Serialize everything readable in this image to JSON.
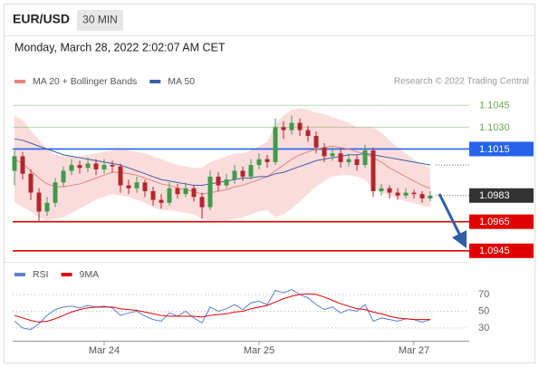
{
  "header": {
    "symbol": "EUR/USD",
    "timeframe": "30 MIN",
    "timestamp": "Monday, March 28, 2022 2:02:07 AM CET"
  },
  "chart_data": [
    {
      "type": "candlestick",
      "source": "Research © 2022 Trading Central",
      "categories": [
        null,
        null,
        null,
        null,
        null,
        null,
        null,
        null,
        null,
        null,
        null,
        "Mar 24",
        null,
        null,
        null,
        null,
        null,
        null,
        null,
        null,
        null,
        null,
        null,
        null,
        null,
        null,
        null,
        null,
        null,
        null,
        "Mar 25",
        null,
        null,
        null,
        null,
        null,
        null,
        null,
        null,
        null,
        null,
        null,
        null,
        null,
        null,
        null,
        null,
        null,
        null,
        "Mar 27",
        null,
        null
      ],
      "ylim": [
        1.0938,
        1.1062
      ],
      "up_color": "#3f9a4c",
      "down_color": "#b3262a",
      "ohlc": [
        [
          1.1,
          1.1014,
          1.099,
          1.101
        ],
        [
          1.101,
          1.1013,
          1.0994,
          1.0998
        ],
        [
          1.0998,
          1.1001,
          1.098,
          1.0985
        ],
        [
          1.0985,
          1.0988,
          1.0965,
          1.0972
        ],
        [
          1.0972,
          1.0982,
          1.0969,
          1.0978
        ],
        [
          1.0978,
          1.0995,
          1.0975,
          1.0992
        ],
        [
          1.0992,
          1.1003,
          1.0989,
          1.1
        ],
        [
          1.1,
          1.1008,
          1.0997,
          1.1004
        ],
        [
          1.1004,
          1.1007,
          1.0998,
          1.1002
        ],
        [
          1.1002,
          1.1009,
          1.0999,
          1.1005
        ],
        [
          1.1005,
          1.1008,
          1.0997,
          1.1001
        ],
        [
          1.1001,
          1.1008,
          1.0998,
          1.1004
        ],
        [
          1.1004,
          1.1007,
          1.0999,
          1.1003
        ],
        [
          1.1003,
          1.1005,
          1.0985,
          1.099
        ],
        [
          1.099,
          1.0994,
          1.0984,
          1.0988
        ],
        [
          1.0988,
          1.0996,
          1.0985,
          1.0992
        ],
        [
          1.0992,
          1.0994,
          1.0982,
          1.0986
        ],
        [
          1.0986,
          1.0989,
          1.0976,
          1.098
        ],
        [
          1.098,
          1.0984,
          1.0974,
          1.0978
        ],
        [
          1.0978,
          1.0992,
          1.0976,
          1.0988
        ],
        [
          1.0988,
          1.0991,
          1.0981,
          1.0984
        ],
        [
          1.0984,
          1.0992,
          1.0982,
          1.0988
        ],
        [
          1.0988,
          1.099,
          1.0979,
          1.0982
        ],
        [
          1.0982,
          1.0985,
          1.0967,
          1.0975
        ],
        [
          1.0975,
          1.1,
          1.0973,
          1.0996
        ],
        [
          1.0996,
          1.0999,
          1.0986,
          1.099
        ],
        [
          1.099,
          1.0998,
          1.0988,
          1.0994
        ],
        [
          1.0994,
          1.1004,
          1.0991,
          1.1
        ],
        [
          1.1,
          1.1003,
          1.0993,
          1.0996
        ],
        [
          1.0996,
          1.1008,
          1.0994,
          1.1004
        ],
        [
          1.1004,
          1.1012,
          1.1001,
          1.1008
        ],
        [
          1.1008,
          1.1011,
          1.1002,
          1.1006
        ],
        [
          1.1006,
          1.1036,
          1.1004,
          1.103
        ],
        [
          1.103,
          1.1034,
          1.1022,
          1.1028
        ],
        [
          1.1028,
          1.1038,
          1.1025,
          1.1033
        ],
        [
          1.1033,
          1.1036,
          1.1024,
          1.1028
        ],
        [
          1.1028,
          1.1031,
          1.102,
          1.1024
        ],
        [
          1.1024,
          1.1027,
          1.1012,
          1.1016
        ],
        [
          1.1016,
          1.1019,
          1.1006,
          1.101
        ],
        [
          1.101,
          1.1016,
          1.1007,
          1.1012
        ],
        [
          1.1012,
          1.1015,
          1.1002,
          1.1006
        ],
        [
          1.1006,
          1.1012,
          1.1003,
          1.1008
        ],
        [
          1.1008,
          1.1011,
          1.1,
          1.1004
        ],
        [
          1.1004,
          1.1018,
          1.1002,
          1.1014
        ],
        [
          1.1014,
          1.1016,
          1.0982,
          1.0986
        ],
        [
          1.0986,
          1.0991,
          1.0983,
          1.0988
        ],
        [
          1.0988,
          1.099,
          1.0981,
          1.0985
        ],
        [
          1.0985,
          1.0988,
          1.098,
          1.0983
        ],
        [
          1.0983,
          1.0988,
          1.0981,
          1.0985
        ],
        [
          1.0985,
          1.0987,
          1.0981,
          1.0984
        ],
        [
          1.0984,
          1.0986,
          1.0978,
          1.0981
        ],
        [
          1.0981,
          1.0986,
          1.0979,
          1.0983
        ]
      ],
      "series": [
        {
          "name": "MA 20 + Bollinger Bands",
          "color": "#e8837c",
          "band_color": "#fbdcdc",
          "values": [
            1.1008,
            1.1005,
            1.1,
            1.0995,
            1.0991,
            1.0989,
            1.0989,
            1.099,
            1.0991,
            1.0993,
            1.0995,
            1.0997,
            1.0999,
            1.0999,
            1.0998,
            1.0997,
            1.0995,
            1.0993,
            1.0991,
            1.099,
            1.0988,
            1.0987,
            1.0986,
            1.0984,
            1.0985,
            1.0986,
            1.0987,
            1.0989,
            1.099,
            1.0992,
            1.0994,
            1.0996,
            1.1,
            1.1004,
            1.1008,
            1.1011,
            1.1013,
            1.1015,
            1.1016,
            1.1017,
            1.1016,
            1.1015,
            1.1013,
            1.1012,
            1.1009,
            1.1006,
            1.1002,
            1.0999,
            1.0996,
            1.0993,
            1.099,
            1.0988
          ],
          "upper": [
            1.1038,
            1.1035,
            1.1028,
            1.1021,
            1.1015,
            1.1011,
            1.101,
            1.101,
            1.101,
            1.1011,
            1.1012,
            1.1013,
            1.1014,
            1.1015,
            1.1014,
            1.1013,
            1.1012,
            1.101,
            1.1008,
            1.1006,
            1.1004,
            1.1003,
            1.1002,
            1.1002,
            1.1006,
            1.1008,
            1.101,
            1.1012,
            1.1012,
            1.1014,
            1.1017,
            1.102,
            1.1032,
            1.1038,
            1.1042,
            1.1043,
            1.1042,
            1.104,
            1.1039,
            1.1037,
            1.1035,
            1.1033,
            1.103,
            1.103,
            1.103,
            1.1026,
            1.1021,
            1.1016,
            1.1012,
            1.1008,
            1.1004,
            1.1002
          ],
          "lower": [
            1.0978,
            1.0975,
            1.0972,
            1.0968,
            1.0966,
            1.0967,
            1.0968,
            1.0971,
            1.0974,
            1.0977,
            1.098,
            1.0982,
            1.0984,
            1.0983,
            1.0982,
            1.098,
            1.0978,
            1.0975,
            1.0973,
            1.0973,
            1.0972,
            1.0971,
            1.097,
            1.0967,
            1.0966,
            1.0966,
            1.0966,
            1.0967,
            1.0968,
            1.097,
            1.0972,
            1.0973,
            1.0968,
            1.097,
            1.0974,
            1.0979,
            1.0984,
            1.0989,
            1.0993,
            1.0996,
            1.0997,
            1.0997,
            1.0996,
            1.0994,
            1.0988,
            1.0985,
            1.0983,
            1.0981,
            1.0979,
            1.0978,
            1.0976,
            1.0975
          ]
        },
        {
          "name": "MA 50",
          "color": "#3b5fa8",
          "values": [
            1.1022,
            1.1021,
            1.1019,
            1.1017,
            1.1015,
            1.1013,
            1.1011,
            1.101,
            1.1009,
            1.1008,
            1.1007,
            1.1006,
            1.1005,
            1.1004,
            1.1002,
            1.1,
            1.0998,
            1.0996,
            1.0994,
            1.0993,
            1.0992,
            1.0991,
            1.099,
            1.099,
            1.0991,
            1.0992,
            1.0993,
            1.0994,
            1.0995,
            1.0995,
            1.0996,
            1.0996,
            1.0998,
            1.0999,
            1.1001,
            1.1003,
            1.1005,
            1.1007,
            1.1008,
            1.1009,
            1.101,
            1.1011,
            1.1011,
            1.1012,
            1.1011,
            1.101,
            1.1009,
            1.1008,
            1.1007,
            1.1006,
            1.1005,
            1.1004
          ]
        }
      ],
      "levels": [
        {
          "value": 1.1045,
          "label": "1.1045",
          "color": "#6aa84f",
          "box": false,
          "line": "solid"
        },
        {
          "value": 1.103,
          "label": "1.1030",
          "color": "#6aa84f",
          "box": false,
          "line": "solid"
        },
        {
          "value": 1.1015,
          "label": "1.1015",
          "color": "#2563eb",
          "box": true,
          "line": "solid"
        },
        {
          "value": 1.0983,
          "label": "1.0983",
          "color": "#333333",
          "box": true,
          "line": "dotted"
        },
        {
          "value": 1.0965,
          "label": "1.0965",
          "color": "#e00000",
          "box": true,
          "line": "solid"
        },
        {
          "value": 1.0945,
          "label": "1.0945",
          "color": "#e00000",
          "box": true,
          "line": "solid"
        }
      ]
    },
    {
      "type": "line",
      "ylim": [
        19,
        82
      ],
      "yticks": [
        30,
        50,
        70
      ],
      "grid": true,
      "series": [
        {
          "name": "RSI",
          "color": "#5b7fd6",
          "values": [
            38,
            30,
            28,
            35,
            45,
            52,
            55,
            56,
            54,
            57,
            55,
            56,
            54,
            45,
            48,
            50,
            44,
            40,
            38,
            48,
            44,
            50,
            42,
            36,
            55,
            50,
            53,
            58,
            52,
            60,
            62,
            58,
            75,
            72,
            76,
            70,
            66,
            58,
            52,
            55,
            48,
            52,
            50,
            58,
            38,
            42,
            40,
            38,
            41,
            40,
            37,
            40
          ]
        },
        {
          "name": "9MA",
          "color": "#e00000",
          "values": [
            45,
            42,
            39,
            37,
            38,
            41,
            45,
            49,
            52,
            54,
            55,
            55,
            55,
            53,
            52,
            51,
            49,
            47,
            45,
            44,
            44,
            44,
            44,
            43,
            45,
            46,
            47,
            49,
            50,
            53,
            55,
            57,
            61,
            65,
            68,
            70,
            71,
            70,
            67,
            63,
            59,
            56,
            53,
            52,
            49,
            47,
            44,
            42,
            41,
            40,
            40,
            40
          ]
        }
      ]
    }
  ]
}
